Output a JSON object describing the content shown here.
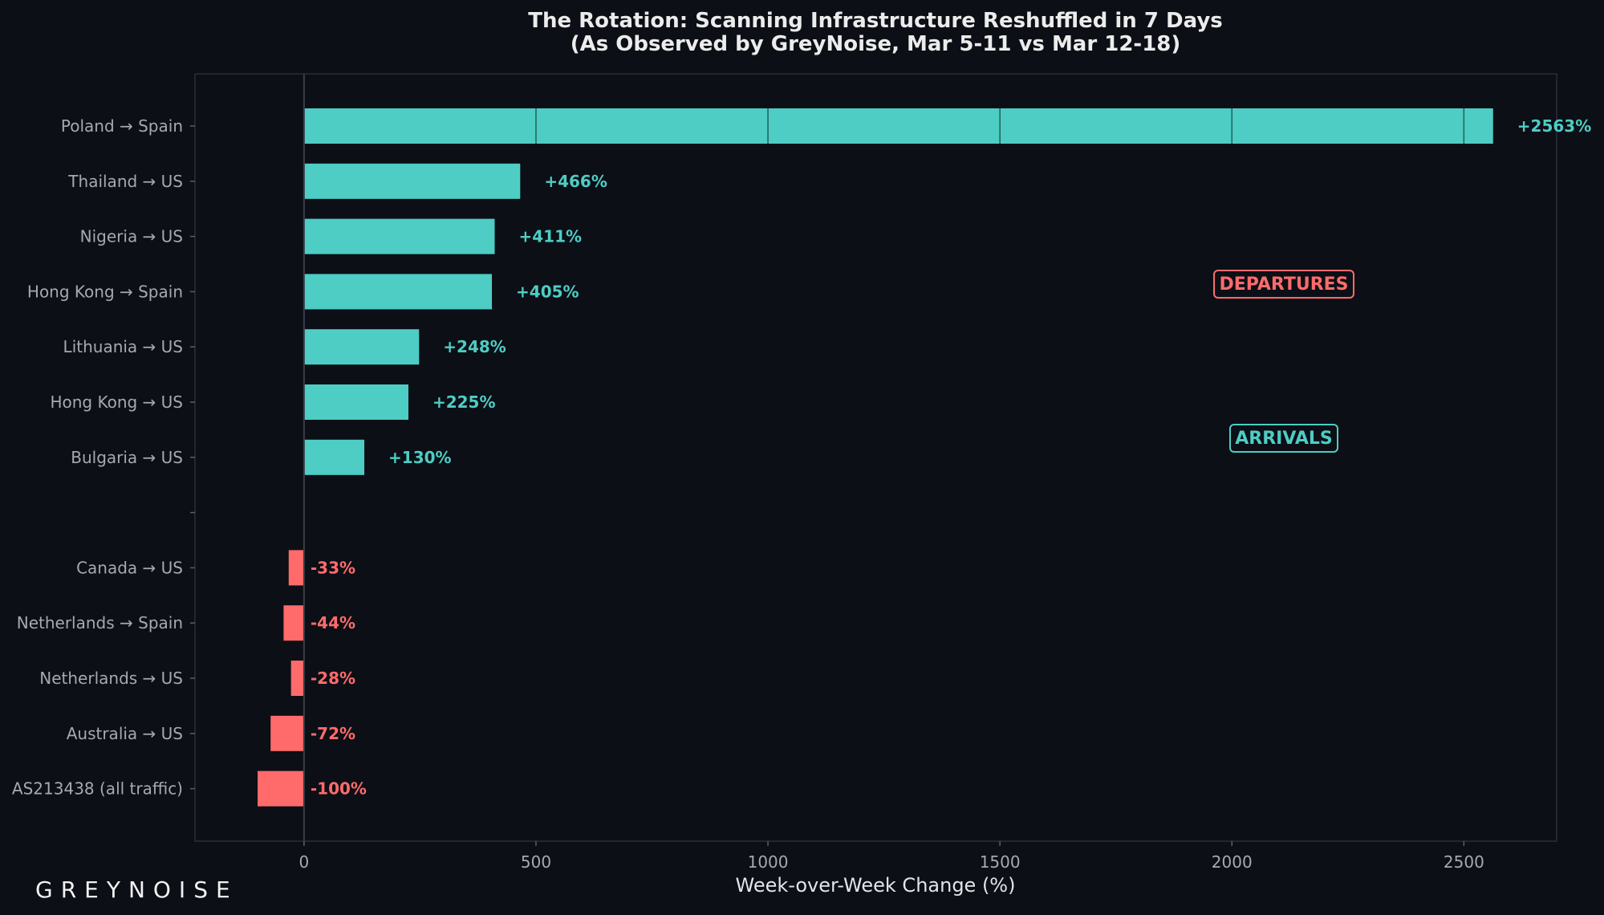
{
  "brand": {
    "logo_text": "GREYNOISE"
  },
  "colors": {
    "background": "#0c0f16",
    "arrivals": "#4ecdc4",
    "departures": "#ff6b6b",
    "grid": "#1f5f5c",
    "axis": "#3a3e48",
    "text": "#a6a9b0"
  },
  "chart_data": {
    "type": "bar",
    "orientation": "horizontal",
    "title": "The Rotation: Scanning Infrastructure Reshuffled in 7 Days",
    "subtitle": "(As Observed by GreyNoise, Mar 5-11 vs Mar 12-18)",
    "xlabel": "Week-over-Week Change (%)",
    "ylabel": "",
    "xlim": [
      -235,
      2700
    ],
    "xticks": [
      0,
      500,
      1000,
      1500,
      2000,
      2500
    ],
    "categories": [
      "Poland → Spain",
      "Thailand → US",
      "Nigeria → US",
      "Hong Kong → Spain",
      "Lithuania → US",
      "Hong Kong → US",
      "Bulgaria → US",
      "",
      "Canada → US",
      "Netherlands → Spain",
      "Netherlands → US",
      "Australia → US",
      "AS213438 (all traffic)"
    ],
    "values": [
      2563,
      466,
      411,
      405,
      248,
      225,
      130,
      null,
      -33,
      -44,
      -28,
      -72,
      -100
    ],
    "data_labels": [
      "+2563%",
      "+466%",
      "+411%",
      "+405%",
      "+248%",
      "+225%",
      "+130%",
      "",
      "-33%",
      "-44%",
      "-28%",
      "-72%",
      "-100%"
    ],
    "annotations": [
      {
        "text": "DEPARTURES",
        "group": "departures"
      },
      {
        "text": "ARRIVALS",
        "group": "arrivals"
      }
    ],
    "grid": false
  }
}
